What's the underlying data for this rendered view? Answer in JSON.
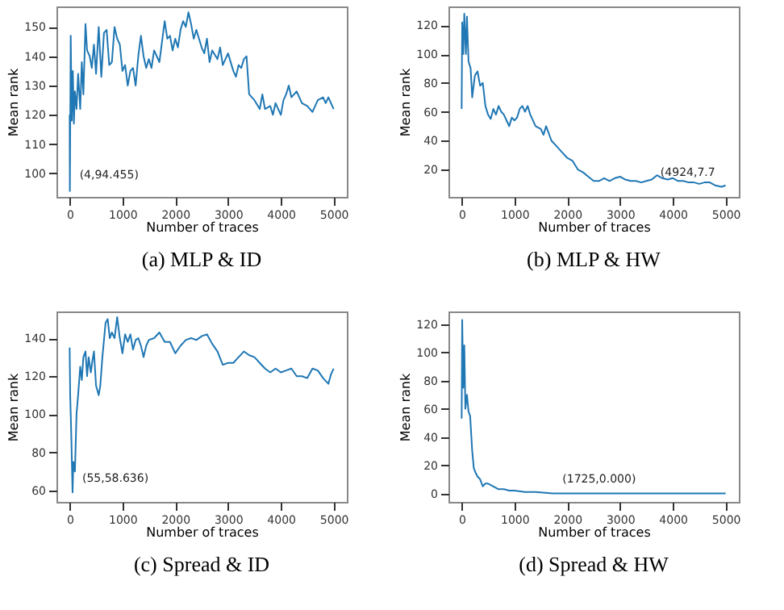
{
  "chart_data": [
    {
      "type": "line",
      "title": "(a) MLP & ID",
      "xlabel": "Number of traces",
      "ylabel": "Mean rank",
      "xlim": [
        -250,
        5250
      ],
      "ylim": [
        92,
        157
      ],
      "xticks": [
        0,
        1000,
        2000,
        3000,
        4000,
        5000
      ],
      "yticks": [
        100,
        110,
        120,
        130,
        140,
        150
      ],
      "grid": false,
      "annotations": [
        {
          "text": "(4,94.455)",
          "x": 4,
          "y": 94.455
        }
      ],
      "series": [
        {
          "color": "#1f77b4",
          "x": [
            0,
            4,
            20,
            40,
            60,
            80,
            100,
            130,
            160,
            200,
            230,
            260,
            300,
            330,
            380,
            420,
            460,
            500,
            550,
            600,
            650,
            700,
            750,
            800,
            850,
            900,
            950,
            1000,
            1050,
            1100,
            1150,
            1200,
            1250,
            1300,
            1350,
            1400,
            1450,
            1500,
            1550,
            1600,
            1700,
            1800,
            1850,
            1900,
            1950,
            2000,
            2050,
            2100,
            2150,
            2200,
            2250,
            2300,
            2350,
            2400,
            2450,
            2500,
            2550,
            2600,
            2650,
            2700,
            2800,
            2850,
            2900,
            3000,
            3100,
            3150,
            3200,
            3250,
            3300,
            3350,
            3400,
            3500,
            3600,
            3650,
            3700,
            3800,
            3850,
            3900,
            4000,
            4050,
            4100,
            4150,
            4200,
            4300,
            4400,
            4500,
            4600,
            4700,
            4800,
            4850,
            4900,
            5000
          ],
          "values": [
            120,
            94,
            147,
            118,
            135,
            117,
            128,
            122,
            134,
            122,
            138,
            127,
            151,
            142,
            140,
            136,
            144,
            134,
            150,
            133,
            148,
            149,
            137,
            138,
            150,
            146,
            144,
            135,
            137,
            130,
            135,
            136,
            130,
            140,
            147,
            140,
            136,
            139,
            136,
            142,
            138,
            152,
            146,
            147,
            142,
            146,
            143,
            149,
            152,
            150,
            155,
            151,
            146,
            149,
            146,
            143,
            141,
            146,
            138,
            142,
            139,
            143,
            137,
            141,
            135,
            133,
            137,
            136,
            139,
            140,
            127,
            125,
            122,
            127,
            122,
            123,
            120,
            124,
            120,
            125,
            127,
            130,
            126,
            128,
            124,
            123,
            121,
            125,
            126,
            124,
            126,
            122
          ]
        }
      ]
    },
    {
      "type": "line",
      "title": "(b) MLP & HW",
      "xlabel": "Number of traces",
      "ylabel": "Mean rank",
      "xlim": [
        -250,
        5250
      ],
      "ylim": [
        1,
        133
      ],
      "xticks": [
        0,
        1000,
        2000,
        3000,
        4000,
        5000
      ],
      "yticks": [
        20,
        40,
        60,
        80,
        100,
        120
      ],
      "grid": false,
      "annotations": [
        {
          "text": "(4924,7.7",
          "x": 4924,
          "y": 7.7
        }
      ],
      "series": [
        {
          "color": "#1f77b4",
          "x": [
            0,
            10,
            30,
            50,
            80,
            100,
            130,
            170,
            200,
            250,
            300,
            350,
            400,
            450,
            500,
            550,
            600,
            650,
            700,
            750,
            800,
            850,
            900,
            950,
            1000,
            1050,
            1100,
            1150,
            1200,
            1250,
            1300,
            1400,
            1500,
            1550,
            1600,
            1700,
            1800,
            1900,
            2000,
            2100,
            2200,
            2300,
            2400,
            2500,
            2600,
            2700,
            2800,
            2900,
            3000,
            3100,
            3200,
            3300,
            3400,
            3500,
            3600,
            3700,
            3800,
            3900,
            4000,
            4100,
            4200,
            4300,
            4400,
            4500,
            4600,
            4700,
            4800,
            4924,
            5000
          ],
          "values": [
            62,
            122,
            100,
            128,
            100,
            126,
            95,
            90,
            70,
            85,
            88,
            78,
            80,
            64,
            58,
            55,
            62,
            58,
            64,
            60,
            58,
            54,
            50,
            56,
            54,
            56,
            62,
            64,
            60,
            64,
            58,
            50,
            48,
            44,
            50,
            40,
            36,
            32,
            28,
            26,
            20,
            18,
            15,
            12,
            12,
            14,
            12,
            14,
            15,
            13,
            12,
            12,
            11,
            12,
            13,
            16,
            14,
            13,
            14,
            12,
            12,
            11,
            11,
            10,
            11,
            11,
            9,
            8,
            9
          ]
        }
      ]
    },
    {
      "type": "line",
      "title": "(c) Spread & ID",
      "xlabel": "Number of traces",
      "ylabel": "Mean rank",
      "xlim": [
        -250,
        5250
      ],
      "ylim": [
        54,
        154
      ],
      "xticks": [
        0,
        1000,
        2000,
        3000,
        4000,
        5000
      ],
      "yticks": [
        60,
        80,
        100,
        120,
        140
      ],
      "grid": false,
      "annotations": [
        {
          "text": "(55,58.636)",
          "x": 55,
          "y": 58.636
        }
      ],
      "series": [
        {
          "color": "#1f77b4",
          "x": [
            0,
            10,
            30,
            55,
            70,
            100,
            130,
            160,
            200,
            230,
            260,
            300,
            330,
            360,
            400,
            430,
            460,
            500,
            550,
            580,
            620,
            680,
            720,
            760,
            800,
            850,
            900,
            950,
            1000,
            1050,
            1100,
            1150,
            1200,
            1250,
            1300,
            1350,
            1400,
            1450,
            1500,
            1600,
            1700,
            1800,
            1900,
            2000,
            2100,
            2200,
            2300,
            2400,
            2500,
            2600,
            2700,
            2800,
            2900,
            3000,
            3100,
            3200,
            3300,
            3400,
            3500,
            3600,
            3700,
            3800,
            3900,
            4000,
            4100,
            4200,
            4300,
            4400,
            4500,
            4600,
            4700,
            4800,
            4900,
            4950,
            5000
          ],
          "values": [
            135,
            110,
            90,
            59,
            75,
            70,
            100,
            110,
            125,
            118,
            130,
            133,
            120,
            130,
            122,
            128,
            133,
            115,
            110,
            115,
            130,
            148,
            150,
            140,
            143,
            140,
            151,
            140,
            132,
            142,
            138,
            142,
            134,
            139,
            140,
            136,
            130,
            136,
            139,
            140,
            143,
            138,
            138,
            132,
            136,
            139,
            140,
            139,
            141,
            142,
            137,
            133,
            126,
            127,
            127,
            130,
            133,
            131,
            130,
            127,
            124,
            122,
            124,
            122,
            123,
            124,
            120,
            120,
            119,
            124,
            123,
            119,
            116,
            121,
            124
          ]
        }
      ]
    },
    {
      "type": "line",
      "title": "(d) Spread & HW",
      "xlabel": "Number of traces",
      "ylabel": "Mean rank",
      "xlim": [
        -250,
        5250
      ],
      "ylim": [
        -6,
        129
      ],
      "xticks": [
        0,
        1000,
        2000,
        3000,
        4000,
        5000
      ],
      "yticks": [
        0,
        20,
        40,
        60,
        80,
        100,
        120
      ],
      "grid": false,
      "annotations": [
        {
          "text": "(1725,0.000)",
          "x": 1725,
          "y": 0
        }
      ],
      "series": [
        {
          "color": "#1f77b4",
          "x": [
            0,
            10,
            30,
            50,
            70,
            100,
            130,
            160,
            200,
            230,
            260,
            300,
            350,
            400,
            450,
            500,
            600,
            700,
            800,
            900,
            1000,
            1200,
            1400,
            1725,
            2000,
            3000,
            4000,
            5000
          ],
          "values": [
            53,
            123,
            75,
            105,
            60,
            70,
            58,
            55,
            30,
            18,
            15,
            12,
            10,
            5,
            7,
            7,
            5,
            3,
            3,
            2,
            2,
            1,
            1,
            0,
            0,
            0,
            0,
            0
          ]
        }
      ]
    }
  ]
}
